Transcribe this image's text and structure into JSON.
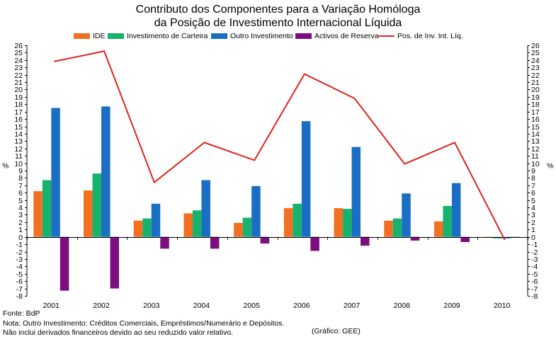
{
  "chart_data": {
    "type": "bar",
    "title_line1": "Contributo dos Componentes para a Variação  Homóloga",
    "title_line2": "da Posição de Investimento Internacional Líquida",
    "categories": [
      "2001",
      "2002",
      "2003",
      "2004",
      "2005",
      "2006",
      "2007",
      "2008",
      "2009",
      "2010"
    ],
    "series": [
      {
        "name": "IDE",
        "kind": "bar",
        "color": "#f36f21",
        "values": [
          6.2,
          6.3,
          2.2,
          3.2,
          1.9,
          3.9,
          3.9,
          2.2,
          2.1,
          -0.1
        ]
      },
      {
        "name": "Investimento de Carteira",
        "kind": "bar",
        "color": "#17b26b",
        "values": [
          7.7,
          8.6,
          2.5,
          3.6,
          2.6,
          4.5,
          3.8,
          2.5,
          4.2,
          -0.2
        ]
      },
      {
        "name": "Outro Investimento",
        "kind": "bar",
        "color": "#1a6fc4",
        "values": [
          17.5,
          17.7,
          4.5,
          7.7,
          6.9,
          15.7,
          12.2,
          5.9,
          7.3,
          -0.2
        ]
      },
      {
        "name": "Activos de Reserva",
        "kind": "bar",
        "color": "#7b0f7e",
        "values": [
          -7.3,
          -7.0,
          -1.6,
          -1.6,
          -0.9,
          -1.9,
          -1.2,
          -0.5,
          -0.7,
          0
        ]
      },
      {
        "name": "Pos. de Inv. Int. Líq.",
        "kind": "line",
        "color": "#e0241b",
        "values": [
          23.8,
          25.2,
          7.4,
          12.8,
          10.4,
          22.1,
          18.8,
          9.9,
          12.8,
          -0.4
        ]
      }
    ],
    "ylim": [
      -8,
      26
    ],
    "yticks": [
      -8,
      -7,
      -6,
      -5,
      -4,
      -3,
      -2,
      -1,
      0,
      1,
      2,
      3,
      4,
      5,
      6,
      7,
      8,
      9,
      10,
      11,
      12,
      13,
      14,
      15,
      16,
      17,
      18,
      19,
      20,
      21,
      22,
      23,
      24,
      25,
      26
    ],
    "ylabel_left": "%",
    "ylabel_right": "%",
    "xlabel": ""
  },
  "footer": {
    "source": "Fonte: BdP",
    "note1": "Nota: Outro Investimento: Créditos Comerciais, Empréstimos/Numerário e Depósitos.",
    "note2": "Não inclui derivados financeiros devido ao seu reduzido valor relativo.",
    "credit": "(Gráfico: GEE)"
  }
}
